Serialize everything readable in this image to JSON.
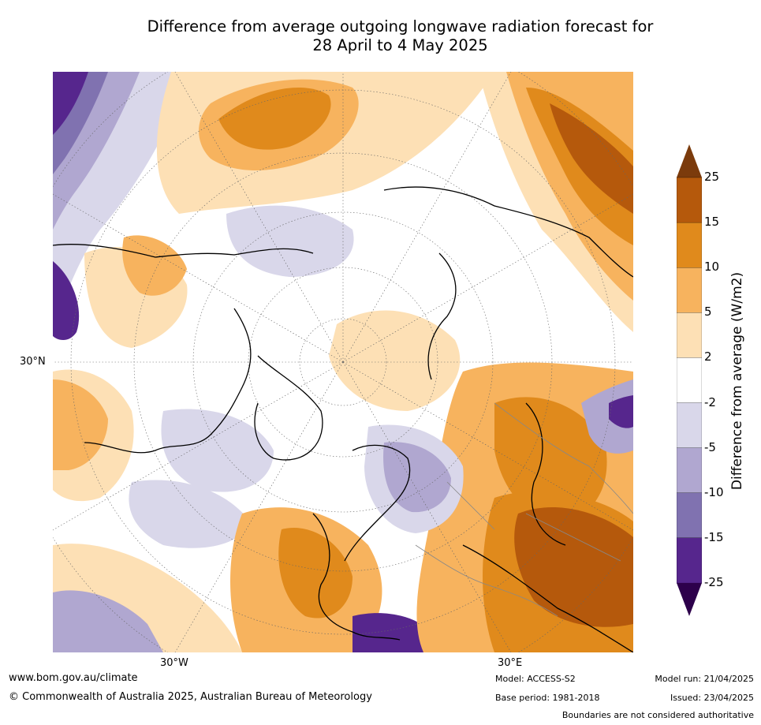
{
  "title": {
    "line1": "Difference from average outgoing longwave radiation forecast for",
    "line2": "28 April to 4 May 2025"
  },
  "map": {
    "projection": "north-polar-stereographic",
    "lat_label": "30°N",
    "lon_labels": [
      "30°W",
      "30°E"
    ]
  },
  "colorbar": {
    "label": "Difference from average (W/m2)",
    "ticks": [
      "25",
      "15",
      "10",
      "5",
      "2",
      "-2",
      "-5",
      "-10",
      "-15",
      "-25"
    ],
    "colors": [
      "#7b3b0c",
      "#b5590c",
      "#e08a1c",
      "#f7b35e",
      "#fde0b5",
      "#ffffff",
      "#d9d7ea",
      "#b0a7d0",
      "#8072b0",
      "#56268d",
      "#2d004b"
    ]
  },
  "footer": {
    "website": "www.bom.gov.au/climate",
    "copyright": "© Commonwealth of Australia 2025, Australian Bureau of Meteorology",
    "model": "Model: ACCESS-S2",
    "base_period": "Base period: 1981-2018",
    "model_run": "Model run: 21/04/2025",
    "issued": "Issued: 23/04/2025",
    "disclaimer": "Boundaries are not considered authoritative"
  }
}
